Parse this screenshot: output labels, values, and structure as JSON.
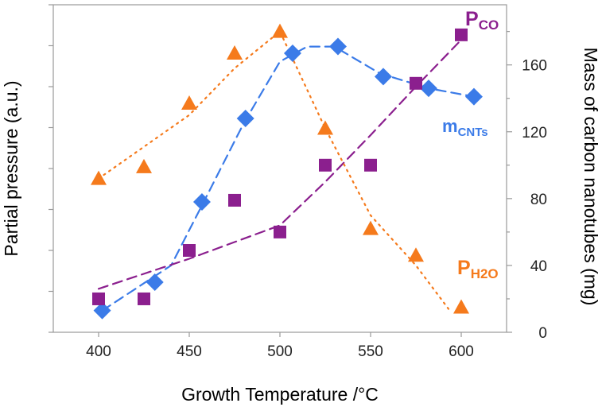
{
  "chart_data": {
    "type": "scatter",
    "title": "",
    "xlabel": "Growth Temperature /°C",
    "ylabel_left": "Partial pressure (a.u.)",
    "ylabel_right": "Mass of carbon nanotubes (mg)",
    "xlim": [
      375,
      625
    ],
    "x_ticks": [
      400,
      450,
      500,
      550,
      600
    ],
    "y_right_lim": [
      0,
      196
    ],
    "y_right_ticks": [
      0,
      40,
      80,
      120,
      160
    ],
    "grid": false,
    "series": [
      {
        "name": "m_CNTs",
        "label_main": "m",
        "label_sub": "CNTs",
        "axis": "right",
        "marker": "diamond",
        "color": "#3B7BE8",
        "line_style": "dashed",
        "x": [
          402,
          431,
          457,
          481,
          507,
          532,
          557,
          582,
          607
        ],
        "y": [
          13,
          30,
          78,
          128,
          167,
          171,
          153,
          146,
          141
        ],
        "trend_x": [
          402,
          440,
          458,
          480,
          500,
          515,
          530,
          555,
          582,
          607
        ],
        "trend_y": [
          13,
          40,
          78,
          125,
          162,
          171,
          171,
          155,
          146,
          141
        ]
      },
      {
        "name": "P_CO",
        "label_main": "P",
        "label_sub": "CO",
        "axis": "left",
        "marker": "square",
        "color": "#8B1F8E",
        "line_style": "dashed",
        "x": [
          400,
          425,
          450,
          475,
          500,
          525,
          550,
          575,
          600
        ],
        "y": [
          20,
          20,
          49,
          79,
          60,
          100,
          100,
          149,
          178
        ],
        "trend_x": [
          400,
          450,
          500,
          525,
          550,
          575,
          600
        ],
        "trend_y": [
          26,
          44,
          64,
          90,
          118,
          147,
          175
        ]
      },
      {
        "name": "P_H2O",
        "label_main": "P",
        "label_sub": "H2O",
        "axis": "left",
        "marker": "triangle",
        "color": "#F57A1C",
        "line_style": "dotted",
        "x": [
          400,
          425,
          450,
          475,
          500,
          525,
          550,
          575,
          600
        ],
        "y": [
          92,
          99,
          137,
          167,
          180,
          122,
          62,
          46,
          15
        ],
        "trend_x": [
          400,
          450,
          475,
          500,
          525,
          550,
          575,
          593
        ],
        "trend_y": [
          92,
          130,
          158,
          180,
          122,
          70,
          40,
          14
        ]
      }
    ]
  }
}
